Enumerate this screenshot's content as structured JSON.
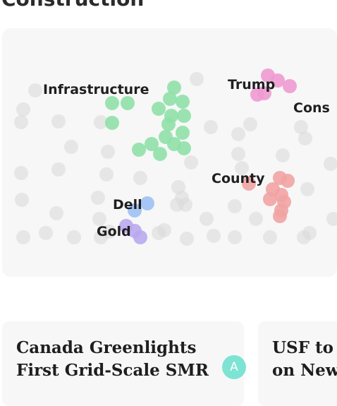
{
  "section": {
    "heading": "Construction"
  },
  "topic_map": {
    "colors": {
      "background_dot": "#d9d9d9",
      "infrastructure": "#8fe0a8",
      "trump": "#ee9ad0",
      "county": "#f1a3a3",
      "dell": "#9cc1f5",
      "gold": "#b9a9ee"
    },
    "labels": {
      "infrastructure": "Infrastructure",
      "trump": "Trump",
      "cons": "Cons",
      "county": "County",
      "dell": "Dell",
      "gold": "Gold"
    }
  },
  "stories": [
    {
      "title_lines": [
        "Canada Greenlights",
        "First Grid-Scale SMR"
      ],
      "source_badge": "A",
      "badge_color": "#7de3d3"
    },
    {
      "title_lines": [
        "USF to",
        "on New"
      ]
    }
  ]
}
